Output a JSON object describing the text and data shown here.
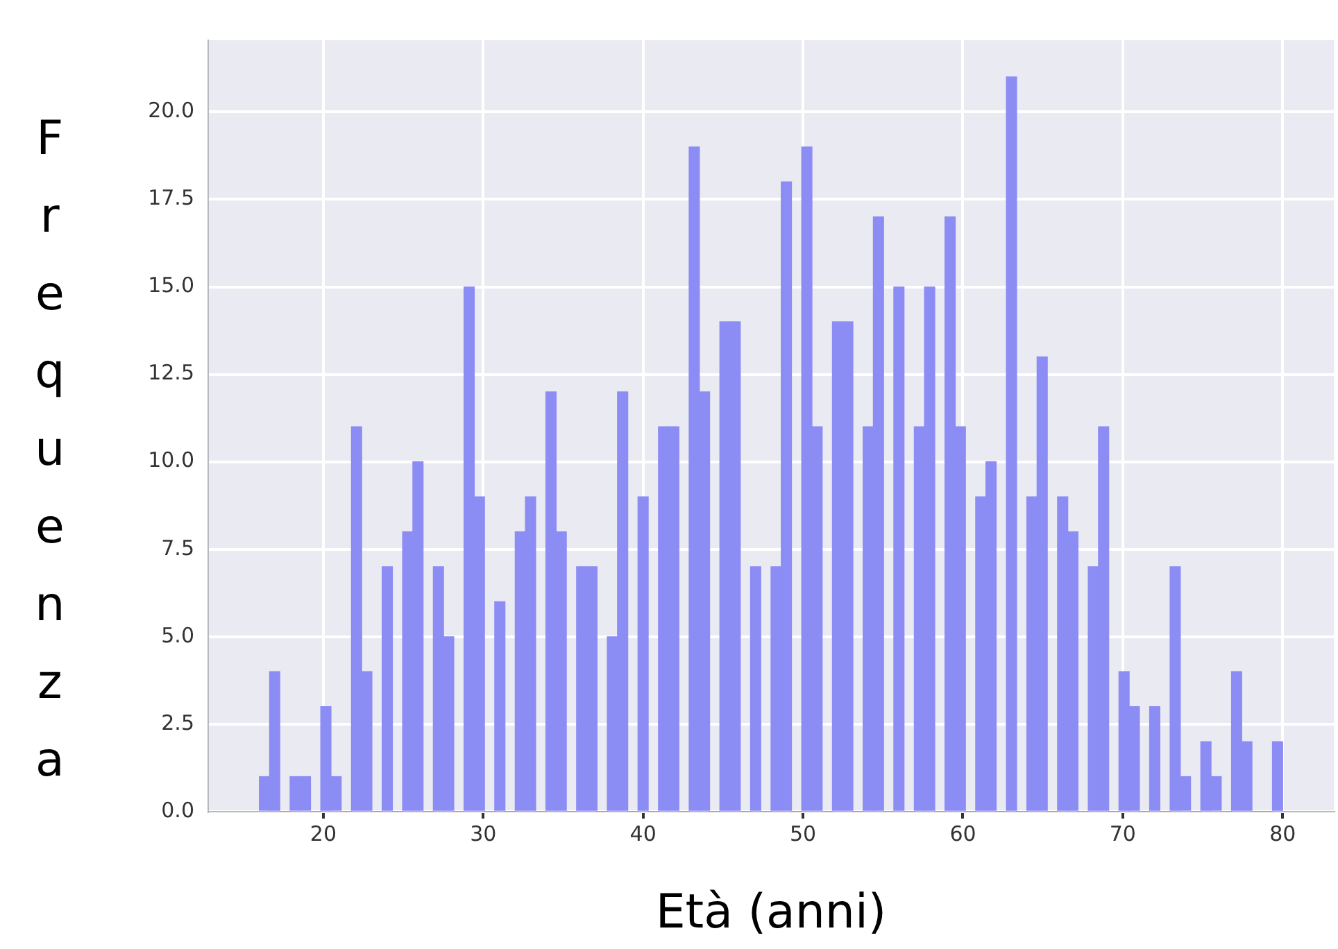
{
  "chart_data": {
    "type": "histogram",
    "xlabel": "Età (anni)",
    "ylabel": "Frequenza",
    "bins": [
      16,
      16.64,
      17.28,
      17.92,
      18.56,
      19.2,
      19.84,
      20.48,
      21.12,
      21.76,
      22.4,
      23.04,
      23.68,
      24.32,
      24.96,
      25.6,
      26.24,
      26.88,
      27.52,
      28.16,
      28.8,
      29.44,
      30.08,
      30.72,
      31.36,
      32,
      32.64,
      33.28,
      33.92,
      34.56,
      35.2,
      35.84,
      36.48,
      37.12,
      37.76,
      38.4,
      39.04,
      39.68,
      40.32,
      40.96,
      41.6,
      42.24,
      42.88,
      43.52,
      44.16,
      44.8,
      45.44,
      46.08,
      46.72,
      47.36,
      48,
      48.64,
      49.28,
      49.92,
      50.56,
      51.2,
      51.84,
      52.48,
      53.12,
      53.76,
      54.4,
      55.04,
      55.68,
      56.32,
      56.96,
      57.6,
      58.24,
      58.88,
      59.52,
      60.16,
      60.8,
      61.44,
      62.08,
      62.72,
      63.36,
      64,
      64.64,
      65.28,
      65.92,
      66.56,
      67.2,
      67.84,
      68.48,
      69.12,
      69.76,
      70.4,
      71.04,
      71.68,
      72.32,
      72.96,
      73.6,
      74.24,
      74.88,
      75.52,
      76.16,
      76.8,
      77.44,
      78.08,
      78.72,
      79.36,
      80
    ],
    "values": [
      1,
      4,
      0,
      1,
      1,
      0,
      3,
      1,
      0,
      11,
      4,
      0,
      7,
      0,
      8,
      10,
      0,
      7,
      5,
      0,
      15,
      9,
      0,
      6,
      0,
      8,
      9,
      0,
      12,
      8,
      0,
      7,
      7,
      0,
      5,
      12,
      0,
      9,
      0,
      11,
      11,
      0,
      19,
      12,
      0,
      14,
      14,
      0,
      7,
      0,
      7,
      18,
      0,
      19,
      11,
      0,
      14,
      14,
      0,
      11,
      17,
      0,
      15,
      0,
      11,
      15,
      0,
      17,
      11,
      0,
      9,
      10,
      0,
      21,
      0,
      9,
      13,
      0,
      9,
      8,
      0,
      7,
      11,
      0,
      4,
      3,
      0,
      3,
      0,
      7,
      1,
      0,
      2,
      1,
      0,
      4,
      2,
      0,
      0,
      2
    ],
    "color": "#8c8cf5",
    "xlim": [
      12.8,
      83.2
    ],
    "xticks": [
      20,
      30,
      40,
      50,
      60,
      70,
      80
    ],
    "ylim": [
      0,
      22.05
    ],
    "yticks": [
      {
        "value": 0,
        "label": "0.0"
      },
      2.5,
      {
        "value": 5,
        "label": "5.0"
      },
      7.5,
      {
        "value": 10,
        "label": "10.0"
      },
      12.5,
      {
        "value": 15,
        "label": "15.0"
      },
      17.5,
      {
        "value": 20,
        "label": "20.0"
      }
    ],
    "grid": true
  }
}
